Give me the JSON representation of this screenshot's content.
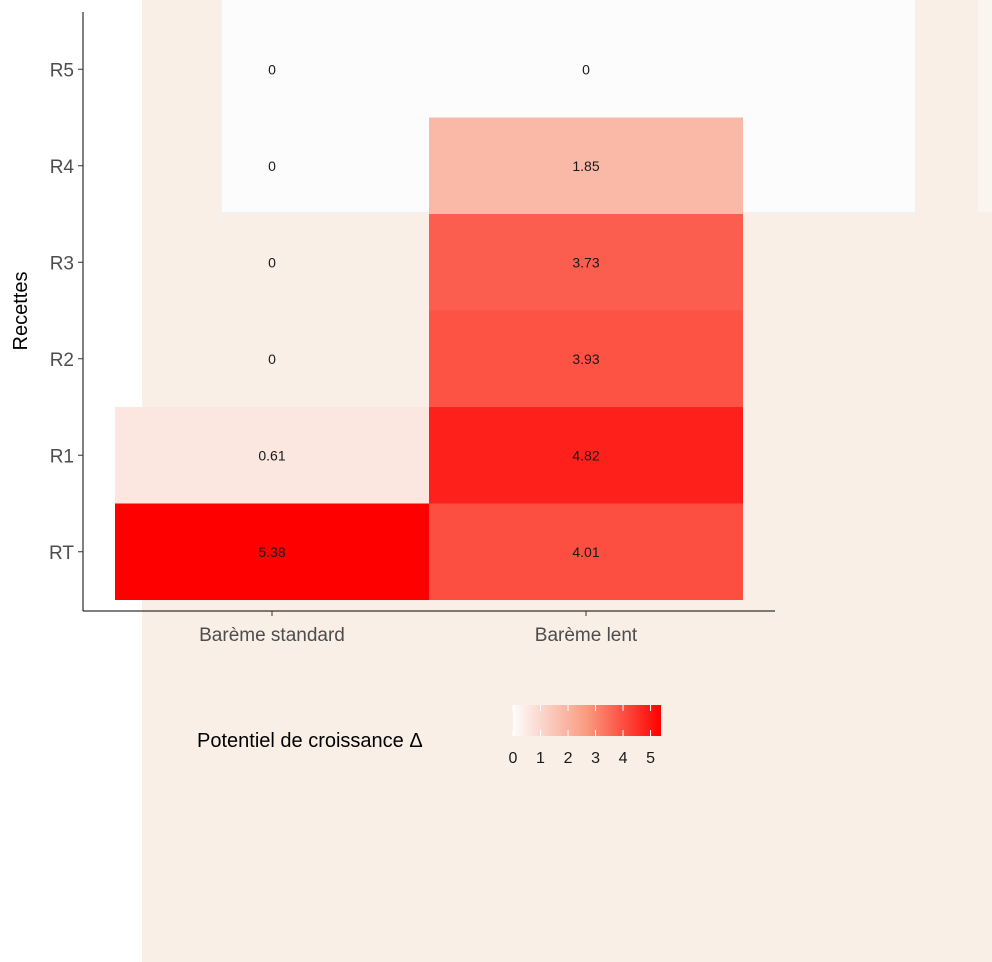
{
  "chart_data": {
    "type": "heatmap",
    "x_categories": [
      "Barème standard",
      "Barème lent"
    ],
    "y_categories": [
      "RT",
      "R1",
      "R2",
      "R3",
      "R4",
      "R5"
    ],
    "ylabel": "Recettes",
    "xlabel": "",
    "values": [
      [
        5.38,
        4.01
      ],
      [
        0.61,
        4.82
      ],
      [
        0,
        3.93
      ],
      [
        0,
        3.73
      ],
      [
        0,
        1.85
      ],
      [
        0,
        0
      ]
    ],
    "value_labels": [
      [
        "5.38",
        "4.01"
      ],
      [
        "0.61",
        "4.82"
      ],
      [
        "0",
        "3.93"
      ],
      [
        "0",
        "3.73"
      ],
      [
        "0",
        "1.85"
      ],
      [
        "0",
        "0"
      ]
    ],
    "color_range": [
      0,
      5.38
    ],
    "colors": {
      "low": "#fcfcfc",
      "high": "#ff0000"
    },
    "legend": {
      "title": "Potentiel de croissance Δ",
      "ticks": [
        "0",
        "1",
        "2",
        "3",
        "4",
        "5"
      ],
      "tick_values": [
        0,
        1,
        2,
        3,
        4,
        5
      ],
      "placement": "bottom"
    },
    "grid": false
  }
}
